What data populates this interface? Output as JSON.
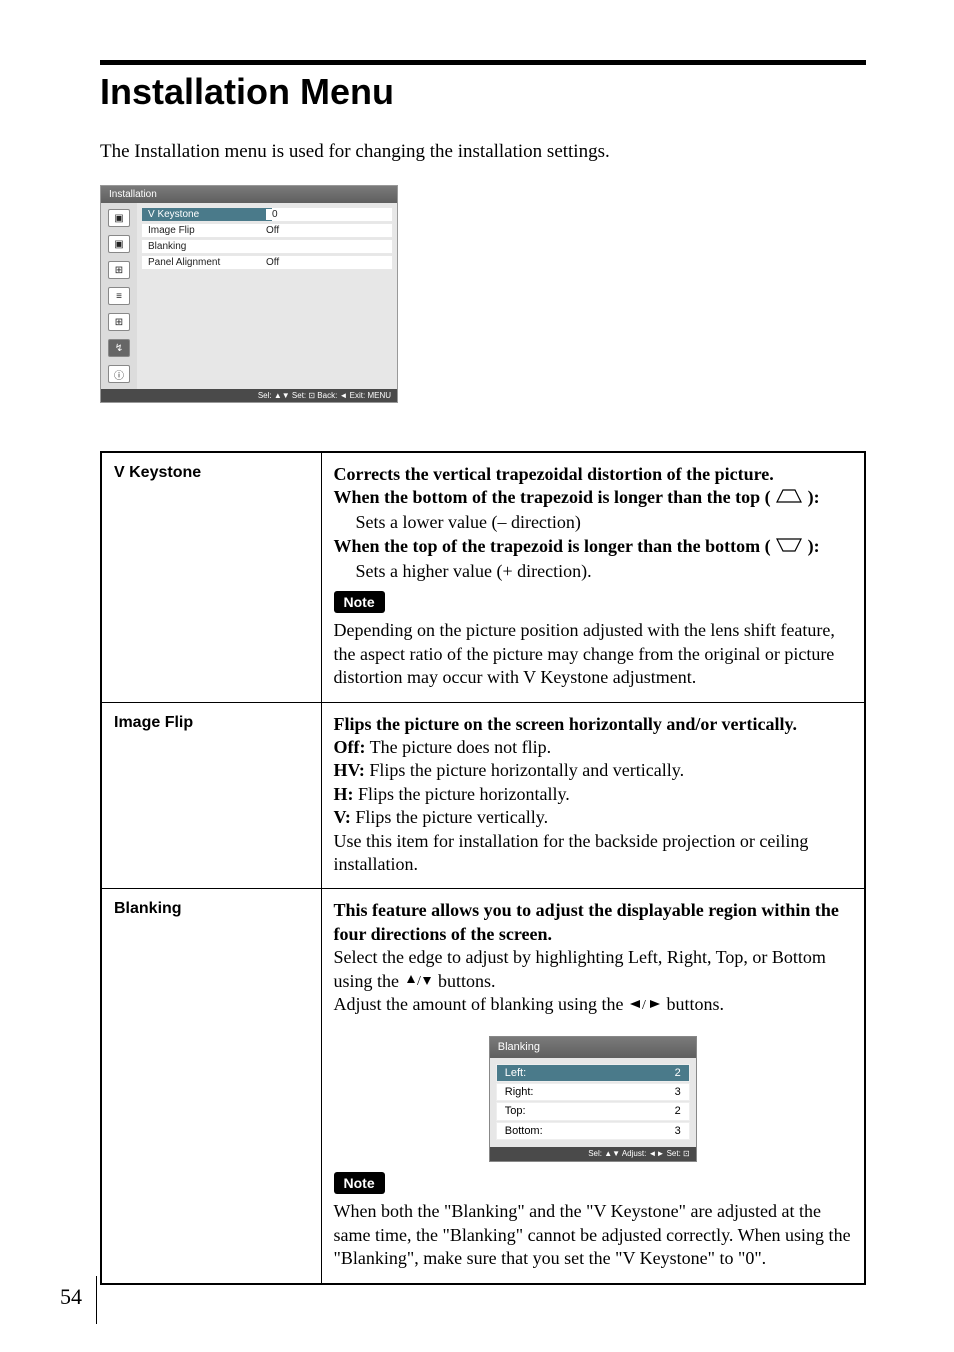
{
  "page": {
    "title": "Installation Menu",
    "intro": "The Installation menu is used for changing the installation settings.",
    "number": "54",
    "note_label": "Note"
  },
  "osd": {
    "title": "Installation",
    "rows": [
      {
        "label": "V Keystone",
        "value": "0",
        "selected": true
      },
      {
        "label": "Image Flip",
        "value": "Off",
        "selected": false
      },
      {
        "label": "Blanking",
        "value": "",
        "selected": false
      },
      {
        "label": "Panel Alignment",
        "value": "Off",
        "selected": false
      }
    ],
    "footer": "Sel: ▲▼  Set: ⊡  Back: ◄  Exit: MENU"
  },
  "settings": {
    "vkeystone": {
      "label": "V Keystone",
      "line1": "Corrects the vertical trapezoidal distortion of the picture.",
      "line2a": "When the bottom of the trapezoid is longer than the top (",
      "line2b": "):",
      "line3": "Sets a lower value (– direction)",
      "line4a": "When the top of the trapezoid is longer than the bottom (",
      "line4b": "):",
      "line5": "Sets a higher value (+ direction).",
      "note": "Depending on the picture position adjusted with the lens shift feature, the aspect ratio of the picture may change from the original or picture distortion may occur with V Keystone adjustment."
    },
    "imageflip": {
      "label": "Image Flip",
      "line1": "Flips the picture on the screen horizontally and/or vertically.",
      "off_l": "Off:",
      "off_t": " The picture does not flip.",
      "hv_l": "HV:",
      "hv_t": " Flips the picture horizontally and vertically.",
      "h_l": "H:",
      "h_t": " Flips the picture horizontally.",
      "v_l": "V:",
      "v_t": " Flips the picture vertically.",
      "line6": "Use this item for installation for the backside projection or ceiling installation."
    },
    "blanking": {
      "label": "Blanking",
      "line1": "This feature allows you to adjust the displayable region within the four directions of the screen.",
      "line2a": "Select the edge to adjust by highlighting Left, Right, Top, or Bottom using the ",
      "line2b": " buttons.",
      "line3a": "Adjust the amount of blanking using the ",
      "line3b": " buttons.",
      "osd": {
        "title": "Blanking",
        "rows": [
          {
            "label": "Left:",
            "value": "2",
            "selected": true
          },
          {
            "label": "Right:",
            "value": "3",
            "selected": false
          },
          {
            "label": "Top:",
            "value": "2",
            "selected": false
          },
          {
            "label": "Bottom:",
            "value": "3",
            "selected": false
          }
        ],
        "footer": "Sel: ▲▼  Adjust: ◄►  Set: ⊡"
      },
      "note": "When both the \"Blanking\" and the \"V Keystone\" are adjusted at the same time, the \"Blanking\" cannot be adjusted correctly. When using the \"Blanking\", make sure that you set the \"V Keystone\" to \"0\"."
    }
  }
}
